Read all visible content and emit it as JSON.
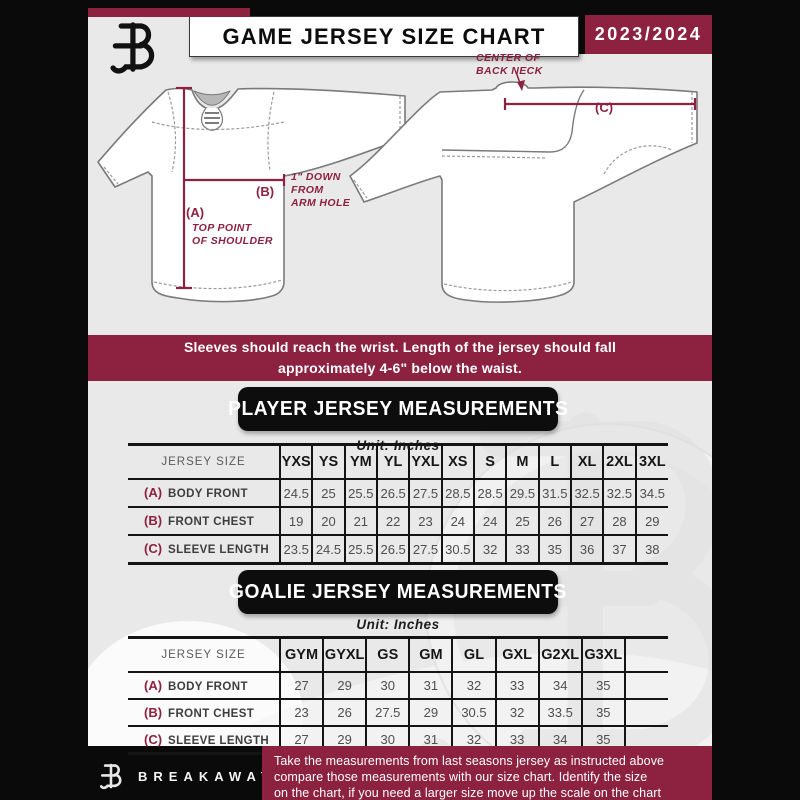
{
  "header": {
    "title": "GAME JERSEY SIZE CHART",
    "season": "2023/2024"
  },
  "diagram": {
    "a_label": "(A)",
    "a_note": [
      "TOP POINT",
      "OF SHOULDER"
    ],
    "b_label": "(B)",
    "b_note": [
      "1\" DOWN",
      "FROM",
      "ARM HOLE"
    ],
    "c_label": "(C)",
    "c_note": [
      "CENTER OF",
      "BACK NECK"
    ]
  },
  "note_banner": {
    "line1": "Sleeves should reach the wrist. Length of the jersey should fall",
    "line2": "approximately 4-6\" below the waist."
  },
  "player": {
    "title": "PLAYER JERSEY MEASUREMENTS",
    "unit": "Unit: Inches",
    "table": {
      "corner": "JERSEY SIZE",
      "sizes": [
        "YXS",
        "YS",
        "YM",
        "YL",
        "YXL",
        "XS",
        "S",
        "M",
        "L",
        "XL",
        "2XL",
        "3XL"
      ],
      "rows": [
        {
          "key": "(A)",
          "label": "BODY FRONT",
          "values": [
            "24.5",
            "25",
            "25.5",
            "26.5",
            "27.5",
            "28.5",
            "28.5",
            "29.5",
            "31.5",
            "32.5",
            "32.5",
            "34.5"
          ]
        },
        {
          "key": "(B)",
          "label": "FRONT CHEST",
          "values": [
            "19",
            "20",
            "21",
            "22",
            "23",
            "24",
            "24",
            "25",
            "26",
            "27",
            "28",
            "29"
          ]
        },
        {
          "key": "(C)",
          "label": "SLEEVE LENGTH",
          "values": [
            "23.5",
            "24.5",
            "25.5",
            "26.5",
            "27.5",
            "30.5",
            "32",
            "33",
            "35",
            "36",
            "37",
            "38"
          ]
        }
      ]
    }
  },
  "goalie": {
    "title": "GOALIE JERSEY MEASUREMENTS",
    "unit": "Unit: Inches",
    "table": {
      "corner": "JERSEY SIZE",
      "sizes": [
        "GYM",
        "GYXL",
        "GS",
        "GM",
        "GL",
        "GXL",
        "G2XL",
        "G3XL",
        ""
      ],
      "rows": [
        {
          "key": "(A)",
          "label": "BODY FRONT",
          "values": [
            "27",
            "29",
            "30",
            "31",
            "32",
            "33",
            "34",
            "35",
            ""
          ]
        },
        {
          "key": "(B)",
          "label": "FRONT CHEST",
          "values": [
            "23",
            "26",
            "27.5",
            "29",
            "30.5",
            "32",
            "33.5",
            "35",
            ""
          ]
        },
        {
          "key": "(C)",
          "label": "SLEEVE LENGTH",
          "values": [
            "27",
            "29",
            "30",
            "31",
            "32",
            "33",
            "34",
            "35",
            ""
          ]
        }
      ]
    }
  },
  "footer": {
    "brand": "BREAKAWAY",
    "lines": [
      "Take the measurements from last seasons jersey as instructed above",
      "compare those measurements  with our size chart. Identify the size",
      "on the chart, if you need a larger size move up the scale on the chart"
    ]
  },
  "colors": {
    "maroon": "#8C2140",
    "ink": "#0d0d0d",
    "background_gray": "#E9E9E9"
  }
}
